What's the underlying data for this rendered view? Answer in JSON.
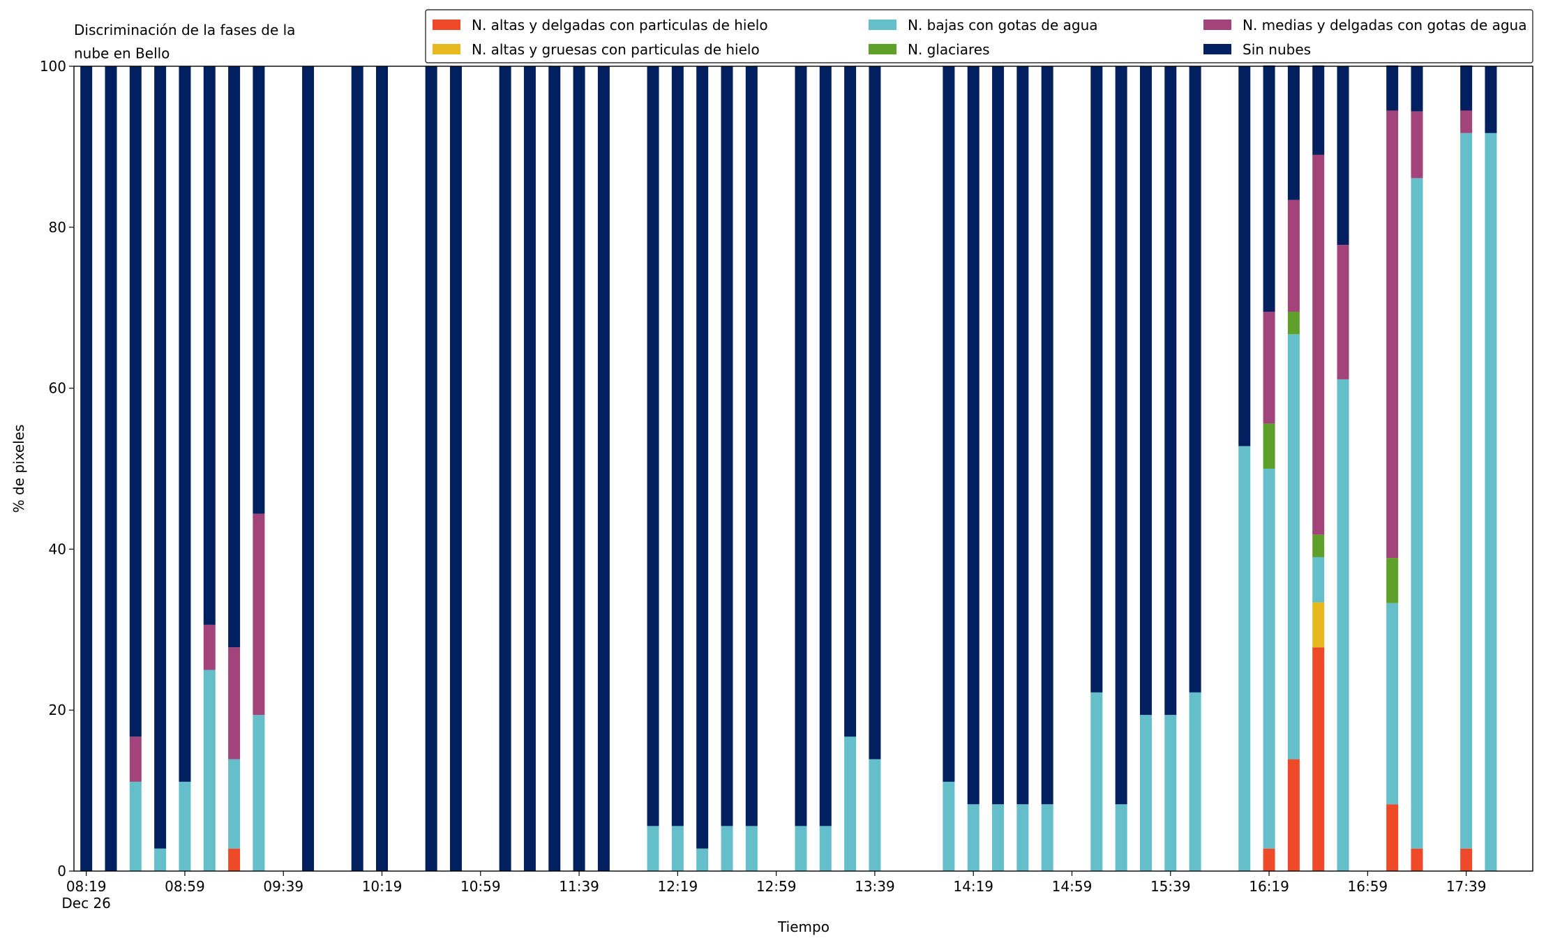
{
  "chart_data": {
    "type": "stacked_bar",
    "title": "Discriminación de la fases de la\nnube en Bello",
    "xlabel": "Tiempo",
    "ylabel": "% de pixeles",
    "x": [
      "08:19",
      "08:29",
      "08:39",
      "08:49",
      "08:59",
      "09:09",
      "09:19",
      "09:29",
      "09:49",
      "10:09",
      "10:19",
      "10:39",
      "10:49",
      "11:09",
      "11:19",
      "11:29",
      "11:39",
      "11:49",
      "12:09",
      "12:19",
      "12:29",
      "12:39",
      "12:49",
      "13:09",
      "13:19",
      "13:29",
      "13:39",
      "14:09",
      "14:19",
      "14:29",
      "14:39",
      "14:49",
      "15:09",
      "15:19",
      "15:29",
      "15:39",
      "15:49",
      "16:09",
      "16:19",
      "16:29",
      "16:39",
      "16:49",
      "17:09",
      "17:19",
      "17:39",
      "17:49"
    ],
    "xlim": [
      "08:14",
      "18:06"
    ],
    "xticks": [
      {
        "value": "08:19",
        "label": "08:19\nDec 26"
      },
      "08:59",
      "09:39",
      "10:19",
      "10:59",
      "11:39",
      "12:19",
      "12:59",
      "13:39",
      "14:19",
      "14:59",
      "15:39",
      "16:19",
      "16:59",
      "17:39"
    ],
    "ylim": [
      0,
      100
    ],
    "yticks": [
      0,
      20,
      40,
      60,
      80,
      100
    ],
    "legend": "top-right",
    "legend_columns": 3,
    "series": [
      {
        "name": "N. altas y delgadas con particulas de hielo",
        "color": "#ee4a2a",
        "values": [
          0,
          0,
          0,
          0,
          0,
          0,
          2.8,
          0,
          0,
          0,
          0,
          0,
          0,
          0,
          0,
          0,
          0,
          0,
          0,
          0,
          0,
          0,
          0,
          0,
          0,
          0,
          0,
          0,
          0,
          0,
          0,
          0,
          0,
          0,
          0,
          0,
          0,
          0,
          2.8,
          13.9,
          27.8,
          0,
          8.3,
          2.8,
          2.8,
          0
        ]
      },
      {
        "name": "N. altas y gruesas con particulas de hielo",
        "color": "#e6b91e",
        "values": [
          0,
          0,
          0,
          0,
          0,
          0,
          0,
          0,
          0,
          0,
          0,
          0,
          0,
          0,
          0,
          0,
          0,
          0,
          0,
          0,
          0,
          0,
          0,
          0,
          0,
          0,
          0,
          0,
          0,
          0,
          0,
          0,
          0,
          0,
          0,
          0,
          0,
          0,
          0,
          0,
          5.6,
          0,
          0,
          0,
          0,
          0
        ]
      },
      {
        "name": "N. bajas con gotas de agua",
        "color": "#64bfcb",
        "values": [
          0,
          0,
          11.1,
          2.8,
          11.1,
          25,
          11.1,
          19.4,
          0,
          0,
          0,
          0,
          0,
          0,
          0,
          0,
          0,
          0,
          5.6,
          5.6,
          2.8,
          5.6,
          5.6,
          5.6,
          5.6,
          16.7,
          13.9,
          11.1,
          8.3,
          8.3,
          8.3,
          8.3,
          22.2,
          8.3,
          19.4,
          19.4,
          22.2,
          52.8,
          47.2,
          52.8,
          5.6,
          61.1,
          25,
          83.3,
          88.9,
          91.7
        ]
      },
      {
        "name": "N. glaciares",
        "color": "#5fa02a",
        "values": [
          0,
          0,
          0,
          0,
          0,
          0,
          0,
          0,
          0,
          0,
          0,
          0,
          0,
          0,
          0,
          0,
          0,
          0,
          0,
          0,
          0,
          0,
          0,
          0,
          0,
          0,
          0,
          0,
          0,
          0,
          0,
          0,
          0,
          0,
          0,
          0,
          0,
          0,
          5.6,
          2.8,
          2.8,
          0,
          5.6,
          0,
          0,
          0
        ]
      },
      {
        "name": "N. medias y delgadas con gotas de agua",
        "color": "#a2447a",
        "values": [
          0,
          0,
          5.6,
          0,
          0,
          5.6,
          13.9,
          25,
          0,
          0,
          0,
          0,
          0,
          0,
          0,
          0,
          0,
          0,
          0,
          0,
          0,
          0,
          0,
          0,
          0,
          0,
          0,
          0,
          0,
          0,
          0,
          0,
          0,
          0,
          0,
          0,
          0,
          0,
          13.9,
          13.9,
          47.2,
          16.7,
          55.6,
          8.3,
          2.8,
          0
        ]
      },
      {
        "name": "Sin nubes",
        "color": "#021f60",
        "values": [
          100,
          100,
          83.3,
          97.2,
          88.9,
          69.4,
          72.2,
          55.6,
          100,
          100,
          100,
          100,
          100,
          100,
          100,
          100,
          100,
          100,
          94.4,
          94.4,
          97.2,
          94.4,
          94.4,
          94.4,
          94.4,
          83.3,
          86.1,
          88.9,
          91.7,
          91.7,
          91.7,
          91.7,
          77.8,
          91.7,
          80.6,
          80.6,
          77.8,
          47.2,
          30.6,
          16.7,
          11.1,
          22.2,
          5.6,
          5.6,
          5.6,
          8.3
        ]
      }
    ]
  }
}
